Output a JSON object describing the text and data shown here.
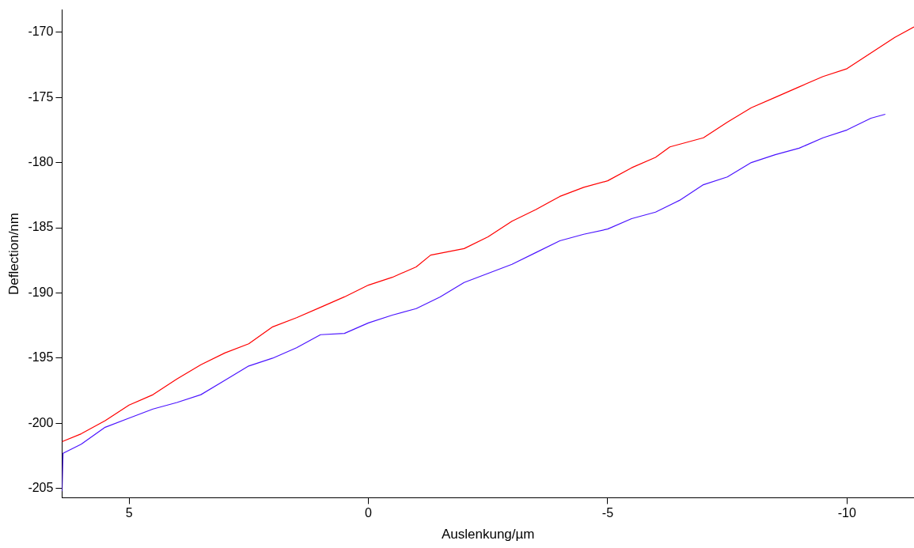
{
  "chart_data": {
    "type": "line",
    "xlabel": "Auslenkung/µm",
    "ylabel": "Deflection/nm",
    "xlim": [
      6.4,
      -11.4
    ],
    "xticks": [
      5,
      0,
      -5,
      -10
    ],
    "ylim": [
      -205.7,
      -168.3
    ],
    "yticks": [
      -205,
      -200,
      -195,
      -190,
      -185,
      -180,
      -175,
      -170
    ],
    "grid": false,
    "legend": false,
    "series": [
      {
        "color": "#ff0000",
        "x": [
          6.4,
          6.0,
          5.5,
          5.0,
          4.5,
          4.0,
          3.5,
          3.0,
          2.5,
          2.0,
          1.5,
          1.0,
          0.5,
          0,
          -0.5,
          -1.0,
          -1.3,
          -2.0,
          -2.5,
          -3.0,
          -3.5,
          -4.0,
          -4.5,
          -5.0,
          -5.5,
          -6.0,
          -6.3,
          -7.0,
          -7.5,
          -8.0,
          -8.5,
          -9.0,
          -9.5,
          -10.0,
          -10.5,
          -11.0,
          -11.4
        ],
        "values": [
          -201.4,
          -200.8,
          -199.8,
          -198.6,
          -197.8,
          -196.6,
          -195.5,
          -194.6,
          -193.9,
          -192.6,
          -191.9,
          -191.1,
          -190.3,
          -189.4,
          -188.8,
          -188.0,
          -187.1,
          -186.6,
          -185.7,
          -184.5,
          -183.6,
          -182.6,
          -181.9,
          -181.4,
          -180.4,
          -179.6,
          -178.8,
          -178.1,
          -176.9,
          -175.8,
          -175.0,
          -174.2,
          -173.4,
          -172.8,
          -171.6,
          -170.4,
          -169.6
        ]
      },
      {
        "color": "#4b14ff",
        "x": [
          6.4,
          6.38,
          6.0,
          5.5,
          5.0,
          4.5,
          4.0,
          3.5,
          3.0,
          2.5,
          2.0,
          1.5,
          1.0,
          0.5,
          0,
          -0.5,
          -1.0,
          -1.5,
          -2.0,
          -2.5,
          -3.0,
          -3.5,
          -4.0,
          -4.5,
          -5.0,
          -5.5,
          -6.0,
          -6.5,
          -7.0,
          -7.5,
          -8.0,
          -8.5,
          -9.0,
          -9.5,
          -10.0,
          -10.5,
          -10.8
        ],
        "values": [
          -205.2,
          -202.3,
          -201.6,
          -200.3,
          -199.6,
          -198.9,
          -198.4,
          -197.8,
          -196.7,
          -195.6,
          -195.0,
          -194.2,
          -193.2,
          -193.1,
          -192.3,
          -191.7,
          -191.2,
          -190.3,
          -189.2,
          -188.5,
          -187.8,
          -186.9,
          -186.0,
          -185.5,
          -185.1,
          -184.3,
          -183.8,
          -182.9,
          -181.7,
          -181.1,
          -180.0,
          -179.4,
          -178.9,
          -178.1,
          -177.5,
          -176.6,
          -176.3
        ]
      }
    ]
  }
}
